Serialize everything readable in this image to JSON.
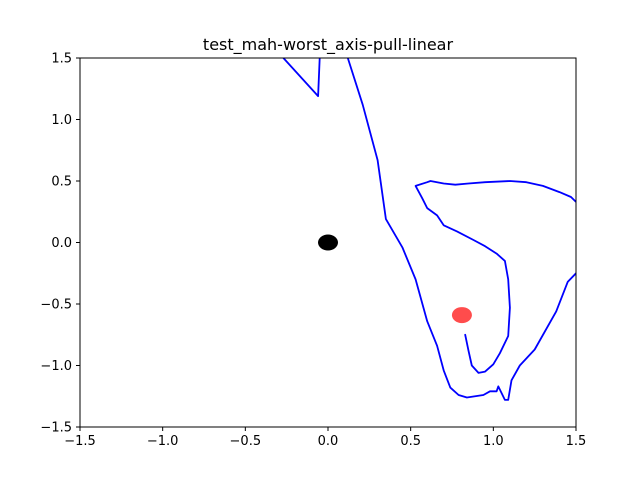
{
  "chart_data": {
    "type": "line",
    "title": "test_mah-worst_axis-pull-linear",
    "xlabel": "",
    "ylabel": "",
    "xlim": [
      -1.5,
      1.5
    ],
    "ylim": [
      -1.5,
      1.5
    ],
    "grid": false,
    "x_ticks": [
      -1.5,
      -1.0,
      -0.5,
      0.0,
      0.5,
      1.0,
      1.5
    ],
    "x_tick_labels": [
      "−1.5",
      "−1.0",
      "−0.5",
      "0.0",
      "0.5",
      "1.0",
      "1.5"
    ],
    "y_ticks": [
      1.5,
      1.0,
      0.5,
      0.0,
      -0.5,
      -1.0,
      -1.5
    ],
    "y_tick_labels": [
      "1.5",
      "1.0",
      "0.5",
      "0.0",
      "−0.5",
      "−1.0",
      "−1.5"
    ],
    "series": [
      {
        "color": "#0000ff",
        "points": [
          [
            -0.27,
            1.5
          ],
          [
            -0.06,
            1.19
          ],
          [
            -0.05,
            1.5
          ]
        ]
      },
      {
        "color": "#0000ff",
        "points": [
          [
            0.12,
            1.5
          ],
          [
            0.21,
            1.12
          ],
          [
            0.3,
            0.67
          ],
          [
            0.35,
            0.19
          ],
          [
            0.45,
            -0.04
          ],
          [
            0.53,
            -0.3
          ],
          [
            0.6,
            -0.64
          ],
          [
            0.66,
            -0.84
          ],
          [
            0.7,
            -1.04
          ],
          [
            0.74,
            -1.18
          ],
          [
            0.79,
            -1.24
          ],
          [
            0.84,
            -1.26
          ],
          [
            0.94,
            -1.24
          ],
          [
            0.98,
            -1.21
          ],
          [
            1.02,
            -1.21
          ],
          [
            1.03,
            -1.17
          ],
          [
            1.07,
            -1.28
          ],
          [
            1.09,
            -1.28
          ],
          [
            1.11,
            -1.12
          ],
          [
            1.16,
            -1.0
          ],
          [
            1.25,
            -0.87
          ],
          [
            1.38,
            -0.56
          ],
          [
            1.45,
            -0.32
          ],
          [
            1.5,
            -0.25
          ]
        ]
      },
      {
        "color": "#0000ff",
        "points": [
          [
            0.83,
            -0.75
          ],
          [
            0.85,
            -0.88
          ],
          [
            0.87,
            -1.0
          ],
          [
            0.91,
            -1.06
          ],
          [
            0.95,
            -1.05
          ],
          [
            1.0,
            -0.99
          ],
          [
            1.04,
            -0.9
          ],
          [
            1.09,
            -0.76
          ],
          [
            1.1,
            -0.53
          ],
          [
            1.09,
            -0.3
          ],
          [
            1.07,
            -0.15
          ],
          [
            1.02,
            -0.09
          ],
          [
            0.95,
            -0.03
          ],
          [
            0.88,
            0.02
          ],
          [
            0.78,
            0.09
          ],
          [
            0.7,
            0.14
          ],
          [
            0.66,
            0.22
          ],
          [
            0.6,
            0.28
          ],
          [
            0.57,
            0.36
          ],
          [
            0.53,
            0.46
          ],
          [
            0.6,
            0.49
          ],
          [
            0.62,
            0.5
          ],
          [
            0.7,
            0.48
          ],
          [
            0.77,
            0.47
          ],
          [
            0.85,
            0.48
          ],
          [
            0.95,
            0.49
          ],
          [
            1.1,
            0.5
          ],
          [
            1.2,
            0.49
          ],
          [
            1.3,
            0.46
          ],
          [
            1.4,
            0.41
          ],
          [
            1.47,
            0.37
          ],
          [
            1.5,
            0.33
          ]
        ]
      }
    ],
    "markers": [
      {
        "x": 0.0,
        "y": 0.0,
        "color": "#000000",
        "opacity": 1.0
      },
      {
        "x": 0.81,
        "y": -0.59,
        "color": "#ff0000",
        "opacity": 0.7
      }
    ]
  }
}
